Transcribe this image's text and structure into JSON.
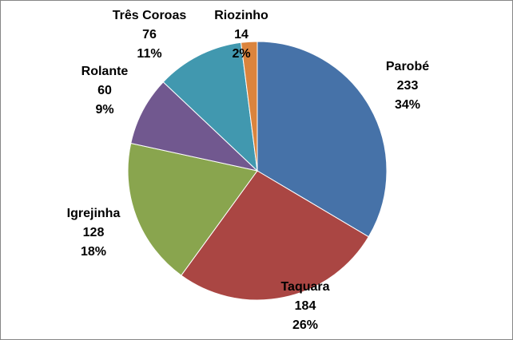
{
  "chart_data": {
    "type": "pie",
    "start_angle": "12 o'clock",
    "direction": "clockwise",
    "slices": [
      {
        "label": "Parobé",
        "value": 233,
        "percent": "34%",
        "color": "#4672A8"
      },
      {
        "label": "Taquara",
        "value": 184,
        "percent": "26%",
        "color": "#AA4643"
      },
      {
        "label": "Igrejinha",
        "value": 128,
        "percent": "18%",
        "color": "#89A54E"
      },
      {
        "label": "Rolante",
        "value": 60,
        "percent": "9%",
        "color": "#71588F"
      },
      {
        "label": "Três Coroas",
        "value": 76,
        "percent": "11%",
        "color": "#4198AF"
      },
      {
        "label": "Riozinho",
        "value": 14,
        "percent": "2%",
        "color": "#DB843D"
      }
    ],
    "legend": "none"
  }
}
